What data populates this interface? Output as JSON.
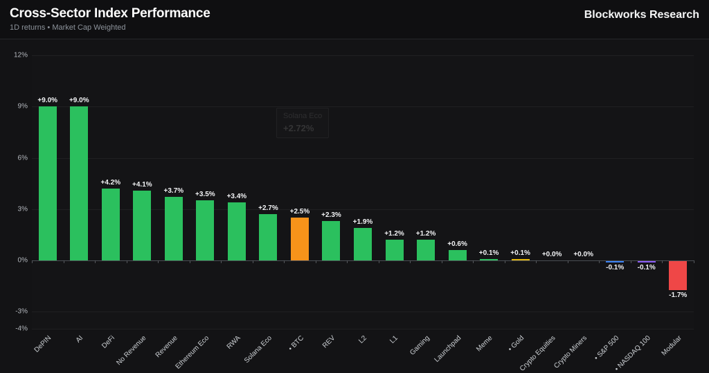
{
  "header": {
    "title": "Cross-Sector Index Performance",
    "subtitle": "1D returns • Market Cap Weighted",
    "brand": "Blockworks Research"
  },
  "tooltip": {
    "name": "Solana Eco",
    "value": "+2.72%"
  },
  "colors": {
    "background": "#131315",
    "plot_background": "#141416",
    "green": "#2bc05e",
    "orange": "#f7931a",
    "gold": "#e3b50a",
    "blue": "#3b82f6",
    "purple": "#8b5cf6",
    "red": "#ef4747"
  },
  "chart_data": {
    "type": "bar",
    "title": "Cross-Sector Index Performance",
    "subtitle": "1D returns • Market Cap Weighted",
    "categories": [
      "DePIN",
      "AI",
      "DeFi",
      "No Revenue",
      "Revenue",
      "Ethereum Eco",
      "RWA",
      "Solana Eco",
      "• BTC",
      "REV",
      "L2",
      "L1",
      "Gaming",
      "Launchpad",
      "Meme",
      "• Gold",
      "Crypto Equities",
      "Crypto Miners",
      "• S&P 500",
      "• NASDAQ 100",
      "Modular"
    ],
    "values": [
      9.0,
      9.0,
      4.2,
      4.1,
      3.7,
      3.5,
      3.4,
      2.7,
      2.5,
      2.3,
      1.9,
      1.2,
      1.2,
      0.6,
      0.1,
      0.1,
      0.0,
      0.0,
      -0.1,
      -0.1,
      -1.7
    ],
    "value_labels": [
      "+9.0%",
      "+9.0%",
      "+4.2%",
      "+4.1%",
      "+3.7%",
      "+3.5%",
      "+3.4%",
      "+2.7%",
      "+2.5%",
      "+2.3%",
      "+1.9%",
      "+1.2%",
      "+1.2%",
      "+0.6%",
      "+0.1%",
      "+0.1%",
      "+0.0%",
      "+0.0%",
      "-0.1%",
      "-0.1%",
      "-1.7%"
    ],
    "bar_colors": [
      "#2bc05e",
      "#2bc05e",
      "#2bc05e",
      "#2bc05e",
      "#2bc05e",
      "#2bc05e",
      "#2bc05e",
      "#2bc05e",
      "#f7931a",
      "#2bc05e",
      "#2bc05e",
      "#2bc05e",
      "#2bc05e",
      "#2bc05e",
      "#2bc05e",
      "#e3b50a",
      "#2bc05e",
      "#2bc05e",
      "#3b82f6",
      "#8b5cf6",
      "#ef4747"
    ],
    "xlabel": "",
    "ylabel": "",
    "ylim": [
      -4,
      12
    ],
    "yticks": [
      12,
      9,
      6,
      3,
      0,
      -3,
      -4
    ],
    "ytick_labels": [
      "12%",
      "9%",
      "6%",
      "3%",
      "0%",
      "-3%",
      "-4%"
    ],
    "grid": true,
    "legend": false
  }
}
